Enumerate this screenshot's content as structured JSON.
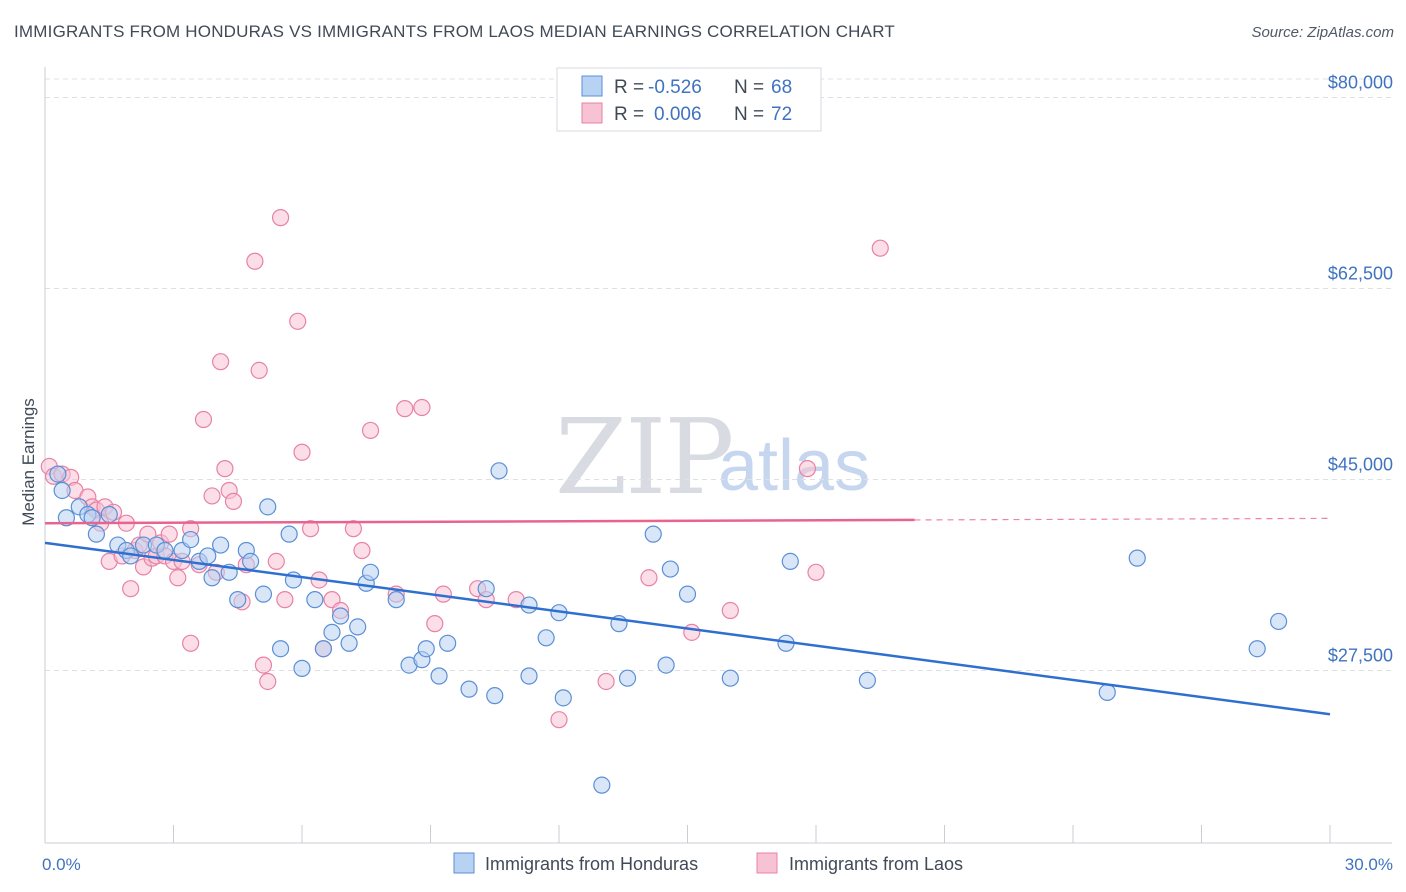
{
  "title": "IMMIGRANTS FROM HONDURAS VS IMMIGRANTS FROM LAOS MEDIAN EARNINGS CORRELATION CHART",
  "source": "Source: ZipAtlas.com",
  "watermark": {
    "zip": "ZIP",
    "atlas": "atlas"
  },
  "colors": {
    "honduras_fill": "#b8d2f3",
    "honduras_stroke": "#5b8fd6",
    "honduras_line": "#2e6fcf",
    "laos_fill": "#f7c3d4",
    "laos_stroke": "#e882a5",
    "laos_line": "#e8648f",
    "tick_label": "#3f73c0",
    "grid": "#dde1e6"
  },
  "stats": {
    "r_label": "R =",
    "n_label": "N =",
    "honduras": {
      "r": "-0.526",
      "n": "68"
    },
    "laos": {
      "r": "0.006",
      "n": "72"
    }
  },
  "legend": {
    "honduras": "Immigrants from Honduras",
    "laos": "Immigrants from Laos"
  },
  "chart_data": {
    "type": "scatter",
    "title": "IMMIGRANTS FROM HONDURAS VS IMMIGRANTS FROM LAOS MEDIAN EARNINGS CORRELATION CHART",
    "xlabel": "",
    "ylabel": "Median Earnings",
    "xlim": [
      0,
      30
    ],
    "ylim": [
      10000,
      83000
    ],
    "x_tick_labels": [
      "0.0%",
      "30.0%"
    ],
    "y_ticks": [
      27500,
      45000,
      62500,
      80000
    ],
    "y_tick_labels": [
      "$27,500",
      "$45,000",
      "$62,500",
      "$80,000"
    ],
    "grid": true,
    "legend_position": "bottom",
    "series": [
      {
        "name": "Immigrants from Honduras",
        "trend": {
          "x": [
            0,
            30
          ],
          "y": [
            39200,
            23500
          ]
        },
        "points": [
          [
            0.3,
            45500
          ],
          [
            0.4,
            44000
          ],
          [
            0.5,
            41500
          ],
          [
            0.8,
            42500
          ],
          [
            1.0,
            41800
          ],
          [
            1.1,
            41500
          ],
          [
            1.2,
            40000
          ],
          [
            1.5,
            41800
          ],
          [
            1.7,
            39000
          ],
          [
            1.9,
            38500
          ],
          [
            2.0,
            38000
          ],
          [
            2.3,
            39000
          ],
          [
            2.6,
            39000
          ],
          [
            2.8,
            38500
          ],
          [
            3.2,
            38500
          ],
          [
            3.4,
            39500
          ],
          [
            3.6,
            37500
          ],
          [
            3.8,
            38000
          ],
          [
            3.9,
            36000
          ],
          [
            4.1,
            39000
          ],
          [
            4.3,
            36500
          ],
          [
            4.5,
            34000
          ],
          [
            4.7,
            38500
          ],
          [
            4.8,
            37500
          ],
          [
            5.1,
            34500
          ],
          [
            5.2,
            42500
          ],
          [
            5.5,
            29500
          ],
          [
            5.7,
            40000
          ],
          [
            5.8,
            35800
          ],
          [
            6.0,
            27700
          ],
          [
            6.3,
            34000
          ],
          [
            6.5,
            29500
          ],
          [
            6.7,
            31000
          ],
          [
            6.9,
            32500
          ],
          [
            7.1,
            30000
          ],
          [
            7.3,
            31500
          ],
          [
            7.5,
            35500
          ],
          [
            7.6,
            36500
          ],
          [
            8.2,
            34000
          ],
          [
            8.5,
            28000
          ],
          [
            8.8,
            28500
          ],
          [
            8.9,
            29500
          ],
          [
            9.2,
            27000
          ],
          [
            9.4,
            30000
          ],
          [
            9.9,
            25800
          ],
          [
            10.3,
            35000
          ],
          [
            10.5,
            25200
          ],
          [
            10.6,
            45800
          ],
          [
            11.3,
            33500
          ],
          [
            11.3,
            27000
          ],
          [
            11.7,
            30500
          ],
          [
            12.0,
            32800
          ],
          [
            12.1,
            25000
          ],
          [
            13.0,
            17000
          ],
          [
            13.4,
            31800
          ],
          [
            13.6,
            26800
          ],
          [
            14.2,
            40000
          ],
          [
            14.5,
            28000
          ],
          [
            14.6,
            36800
          ],
          [
            15.0,
            34500
          ],
          [
            16.0,
            26800
          ],
          [
            17.3,
            30000
          ],
          [
            17.4,
            37500
          ],
          [
            19.2,
            26600
          ],
          [
            24.8,
            25500
          ],
          [
            25.5,
            37800
          ],
          [
            28.3,
            29500
          ],
          [
            28.8,
            32000
          ]
        ]
      },
      {
        "name": "Immigrants from Laos",
        "trend": {
          "x": [
            0,
            20.3
          ],
          "y": [
            41000,
            41300
          ],
          "dashed_to_x": 30
        },
        "points": [
          [
            0.1,
            46200
          ],
          [
            0.2,
            45300
          ],
          [
            0.4,
            45500
          ],
          [
            0.6,
            45200
          ],
          [
            0.7,
            44000
          ],
          [
            1.0,
            43400
          ],
          [
            1.1,
            42500
          ],
          [
            1.2,
            42200
          ],
          [
            1.3,
            41000
          ],
          [
            1.4,
            42500
          ],
          [
            1.5,
            37500
          ],
          [
            1.6,
            42000
          ],
          [
            1.8,
            38000
          ],
          [
            1.9,
            41000
          ],
          [
            2.0,
            35000
          ],
          [
            2.1,
            38500
          ],
          [
            2.2,
            39000
          ],
          [
            2.3,
            37000
          ],
          [
            2.4,
            40000
          ],
          [
            2.5,
            37800
          ],
          [
            2.6,
            38000
          ],
          [
            2.7,
            39200
          ],
          [
            2.8,
            38000
          ],
          [
            2.9,
            40000
          ],
          [
            3.0,
            37500
          ],
          [
            3.1,
            36000
          ],
          [
            3.2,
            37500
          ],
          [
            3.4,
            30000
          ],
          [
            3.4,
            40500
          ],
          [
            3.6,
            37200
          ],
          [
            3.7,
            50500
          ],
          [
            3.9,
            43500
          ],
          [
            4.0,
            36500
          ],
          [
            4.1,
            55800
          ],
          [
            4.2,
            46000
          ],
          [
            4.3,
            44000
          ],
          [
            4.4,
            43000
          ],
          [
            4.6,
            33800
          ],
          [
            4.7,
            37200
          ],
          [
            4.9,
            65000
          ],
          [
            5.0,
            55000
          ],
          [
            5.1,
            28000
          ],
          [
            5.2,
            26500
          ],
          [
            5.4,
            37500
          ],
          [
            5.5,
            69000
          ],
          [
            5.6,
            34000
          ],
          [
            5.9,
            59500
          ],
          [
            6.0,
            47500
          ],
          [
            6.2,
            40500
          ],
          [
            6.4,
            35800
          ],
          [
            6.5,
            29500
          ],
          [
            6.7,
            34000
          ],
          [
            6.9,
            33000
          ],
          [
            7.2,
            40500
          ],
          [
            7.4,
            38500
          ],
          [
            7.6,
            49500
          ],
          [
            8.2,
            34500
          ],
          [
            8.4,
            51500
          ],
          [
            8.8,
            51600
          ],
          [
            9.1,
            31800
          ],
          [
            9.3,
            34500
          ],
          [
            10.1,
            35000
          ],
          [
            10.3,
            34000
          ],
          [
            11.0,
            34000
          ],
          [
            12.0,
            23000
          ],
          [
            13.1,
            26500
          ],
          [
            14.1,
            36000
          ],
          [
            15.1,
            31000
          ],
          [
            16.0,
            33000
          ],
          [
            17.8,
            46000
          ],
          [
            18.0,
            36500
          ],
          [
            19.5,
            66200
          ]
        ]
      }
    ]
  }
}
